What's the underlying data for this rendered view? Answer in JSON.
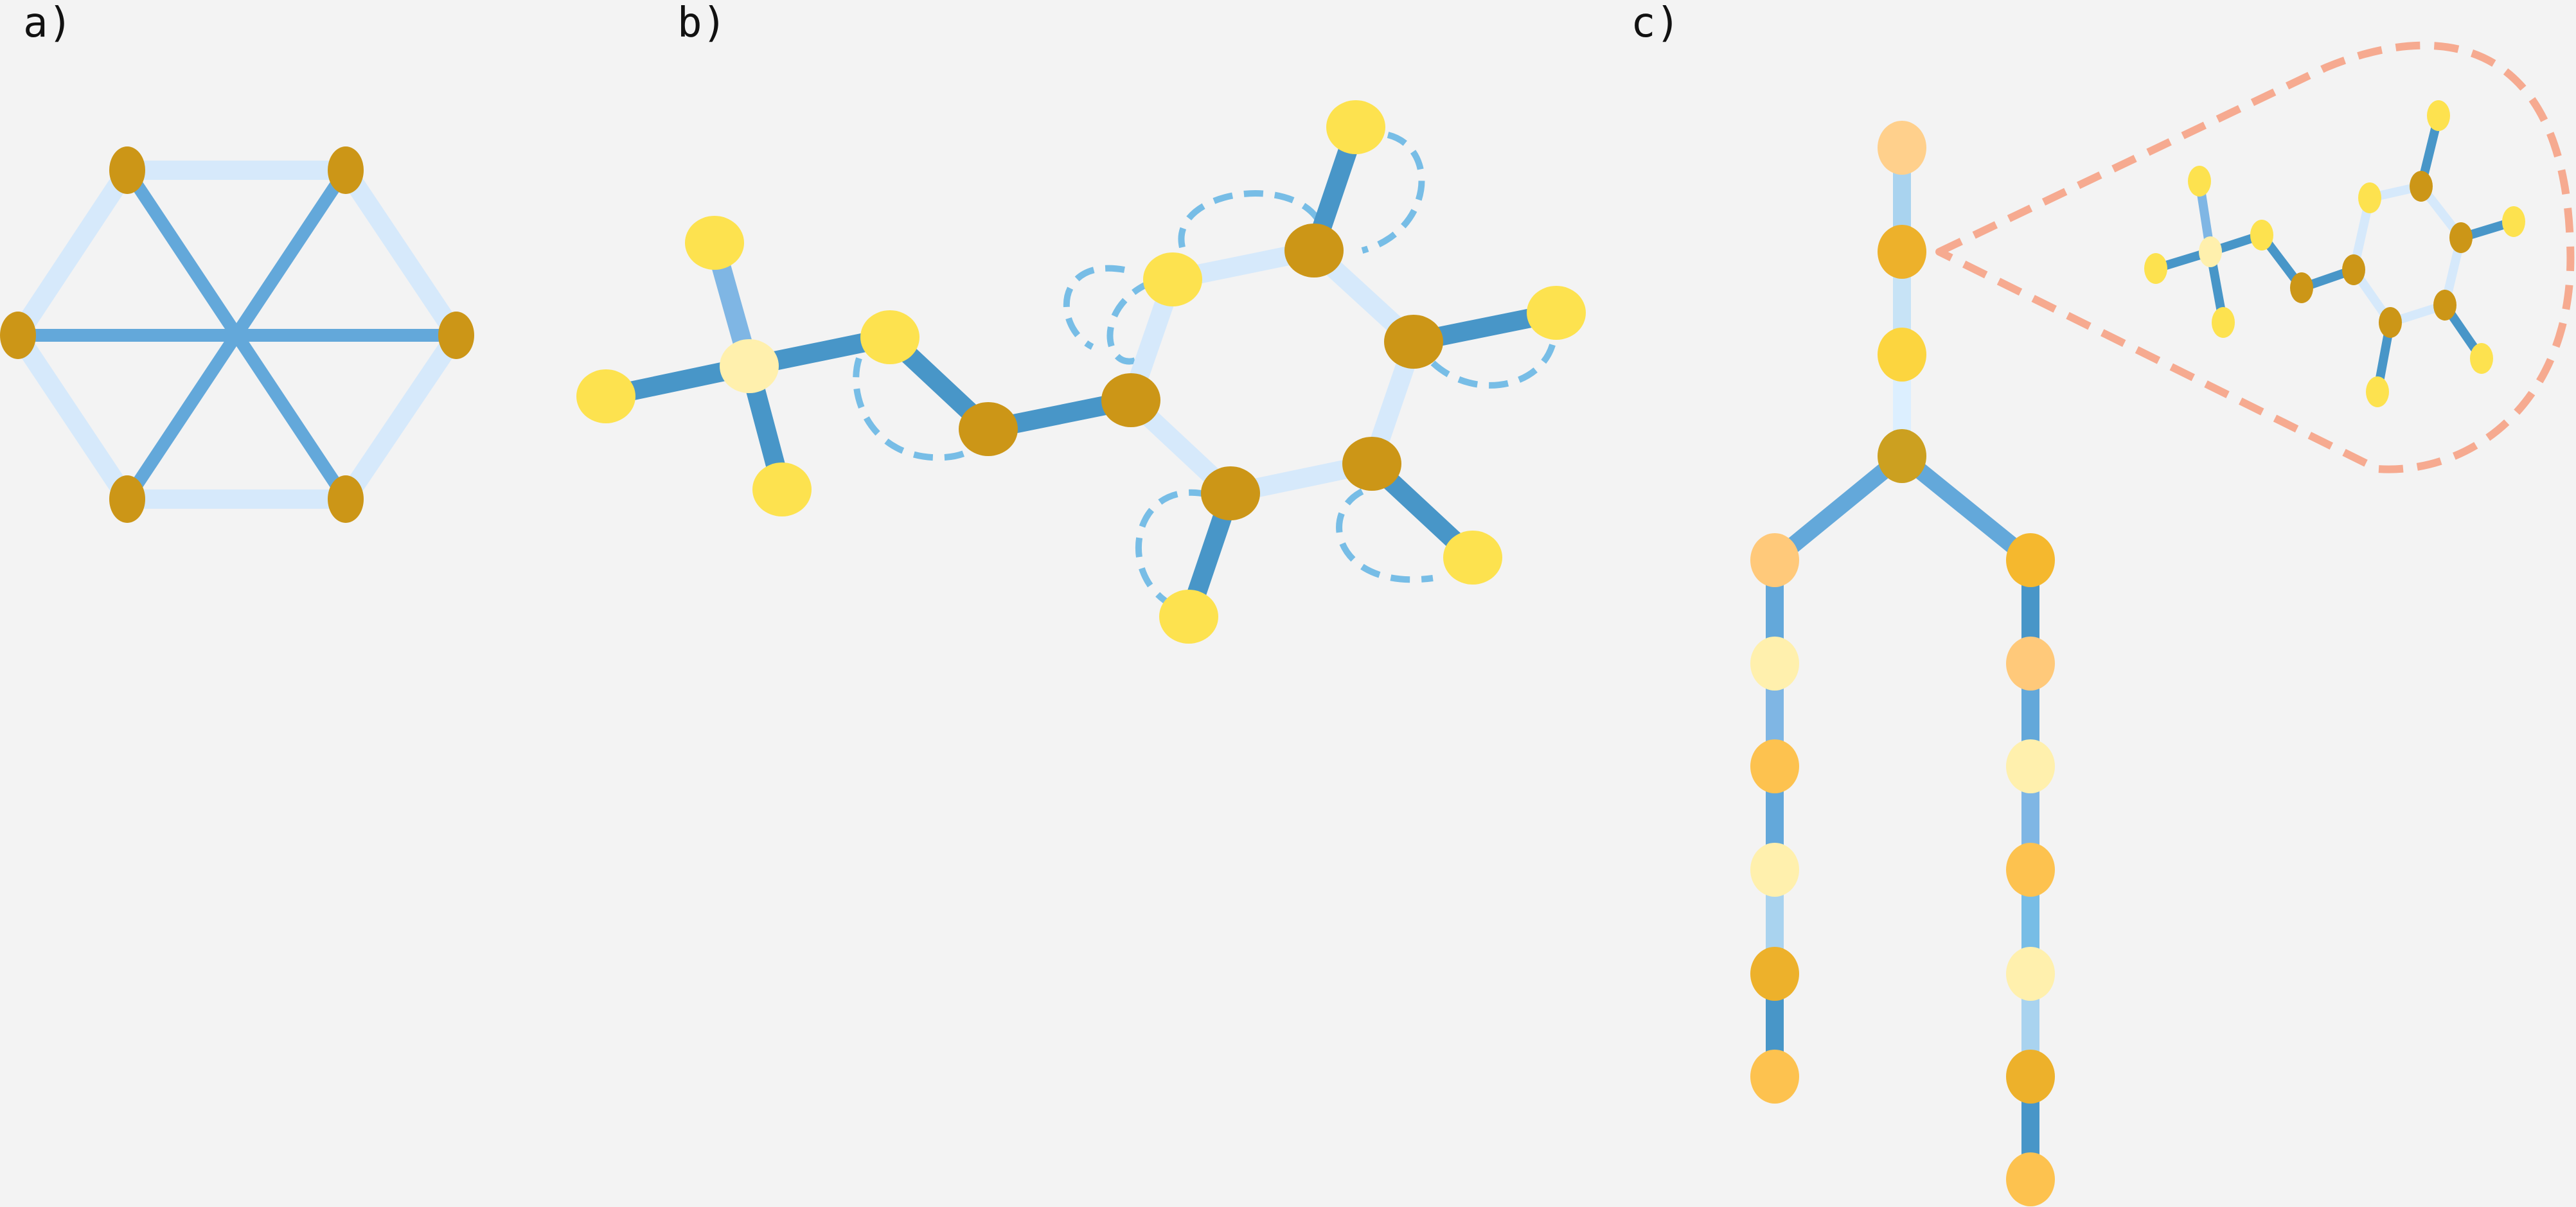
{
  "panels": {
    "a": {
      "label": "a)"
    },
    "b": {
      "label": "b)"
    },
    "c": {
      "label": "c)"
    }
  },
  "palette": {
    "background": "#f3f3f3",
    "edge_dark": "#4896c8",
    "edge_mid": "#63a8da",
    "edge_light": "#d6e9fb",
    "edge_pale": "#dcefff",
    "loop_dashed": "#77bde6",
    "callout_dashed": "#f6aa90",
    "node_dark_gold": "#cc9617",
    "node_yellow": "#fde24f",
    "node_pale_yellow": "#fff0ad",
    "node_peach": "#ffd08c",
    "node_orange": "#fdc24f",
    "node_amber": "#edb12b",
    "node_light_yellow": "#fae18a"
  }
}
